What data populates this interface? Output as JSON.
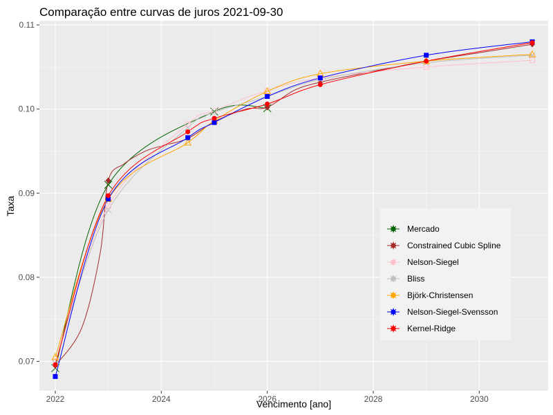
{
  "chart_data": {
    "type": "line",
    "title": "Comparação entre curvas de juros  2021-09-30",
    "xlabel": "Vencimento [ano]",
    "ylabel": "Taxa",
    "xlim": [
      2021.7,
      2031.3
    ],
    "ylim": [
      0.0665,
      0.1105
    ],
    "x_ticks": [
      2022,
      2024,
      2026,
      2028,
      2030
    ],
    "x_tick_labels": [
      "2022",
      "2024",
      "2026",
      "2028",
      "2030"
    ],
    "y_ticks": [
      0.07,
      0.08,
      0.09,
      0.1,
      0.11
    ],
    "y_tick_labels": [
      "0.07",
      "0.08",
      "0.09",
      "0.10",
      "0.11"
    ],
    "grid": true,
    "legend_position": "bottom-right",
    "series": [
      {
        "name": "Mercado",
        "color": "#006400",
        "marker": "x",
        "points": [
          [
            2022.0,
            0.0692
          ],
          [
            2023.0,
            0.091
          ],
          [
            2025.0,
            0.0997
          ],
          [
            2026.0,
            0.1001
          ]
        ]
      },
      {
        "name": "Constrained Cubic Spline",
        "color": "#A52A2A",
        "marker": "diamond",
        "points": [
          [
            2022.0,
            0.0695
          ],
          [
            2022.5,
            0.074
          ],
          [
            2022.85,
            0.083
          ],
          [
            2023.0,
            0.0915
          ],
          [
            2023.3,
            0.0935
          ],
          [
            2023.7,
            0.095
          ],
          [
            2024.0,
            0.0956
          ],
          [
            2024.5,
            0.0965
          ],
          [
            2025.0,
            0.0985
          ],
          [
            2025.6,
            0.1
          ],
          [
            2026.0,
            0.1002
          ],
          [
            2026.5,
            0.1022
          ],
          [
            2027.0,
            0.1032
          ],
          [
            2028.0,
            0.1045
          ],
          [
            2029.0,
            0.1057
          ],
          [
            2030.0,
            0.1067
          ],
          [
            2031.0,
            0.1077
          ]
        ]
      },
      {
        "name": "Nelson-Siegel",
        "color": "#FFC0CB",
        "marker": "square-open",
        "points": [
          [
            2022.0,
            0.07
          ],
          [
            2023.0,
            0.0885
          ],
          [
            2024.5,
            0.0982
          ],
          [
            2025.0,
            0.0998
          ],
          [
            2026.0,
            0.1022
          ],
          [
            2027.0,
            0.1037
          ],
          [
            2029.0,
            0.105
          ],
          [
            2031.0,
            0.1058
          ]
        ]
      },
      {
        "name": "Bliss",
        "color": "#BEBEBE",
        "marker": "x",
        "points": [
          [
            2022.0,
            0.0698
          ],
          [
            2023.0,
            0.088
          ],
          [
            2024.5,
            0.0978
          ],
          [
            2025.0,
            0.0996
          ],
          [
            2026.0,
            0.1015
          ],
          [
            2027.0,
            0.1035
          ],
          [
            2029.0,
            0.1055
          ],
          [
            2031.0,
            0.1064
          ]
        ]
      },
      {
        "name": "Björk-Christensen",
        "color": "#FFA500",
        "marker": "triangle-open",
        "points": [
          [
            2022.0,
            0.0705
          ],
          [
            2023.0,
            0.0893
          ],
          [
            2024.5,
            0.096
          ],
          [
            2025.0,
            0.0986
          ],
          [
            2026.0,
            0.1021
          ],
          [
            2027.0,
            0.1042
          ],
          [
            2029.0,
            0.1057
          ],
          [
            2031.0,
            0.1065
          ]
        ]
      },
      {
        "name": "Nelson-Siegel-Svensson",
        "color": "#0000FF",
        "marker": "square",
        "points": [
          [
            2022.0,
            0.0682
          ],
          [
            2023.0,
            0.0893
          ],
          [
            2024.5,
            0.0966
          ],
          [
            2025.0,
            0.0984
          ],
          [
            2026.0,
            0.1015
          ],
          [
            2027.0,
            0.1037
          ],
          [
            2029.0,
            0.1064
          ],
          [
            2031.0,
            0.108
          ]
        ]
      },
      {
        "name": "Kernel-Ridge",
        "color": "#FF0000",
        "marker": "circle",
        "points": [
          [
            2022.0,
            0.0696
          ],
          [
            2023.0,
            0.0897
          ],
          [
            2024.5,
            0.0973
          ],
          [
            2025.0,
            0.0989
          ],
          [
            2026.0,
            0.1006
          ],
          [
            2027.0,
            0.1029
          ],
          [
            2029.0,
            0.1057
          ],
          [
            2031.0,
            0.1079
          ]
        ]
      }
    ]
  }
}
